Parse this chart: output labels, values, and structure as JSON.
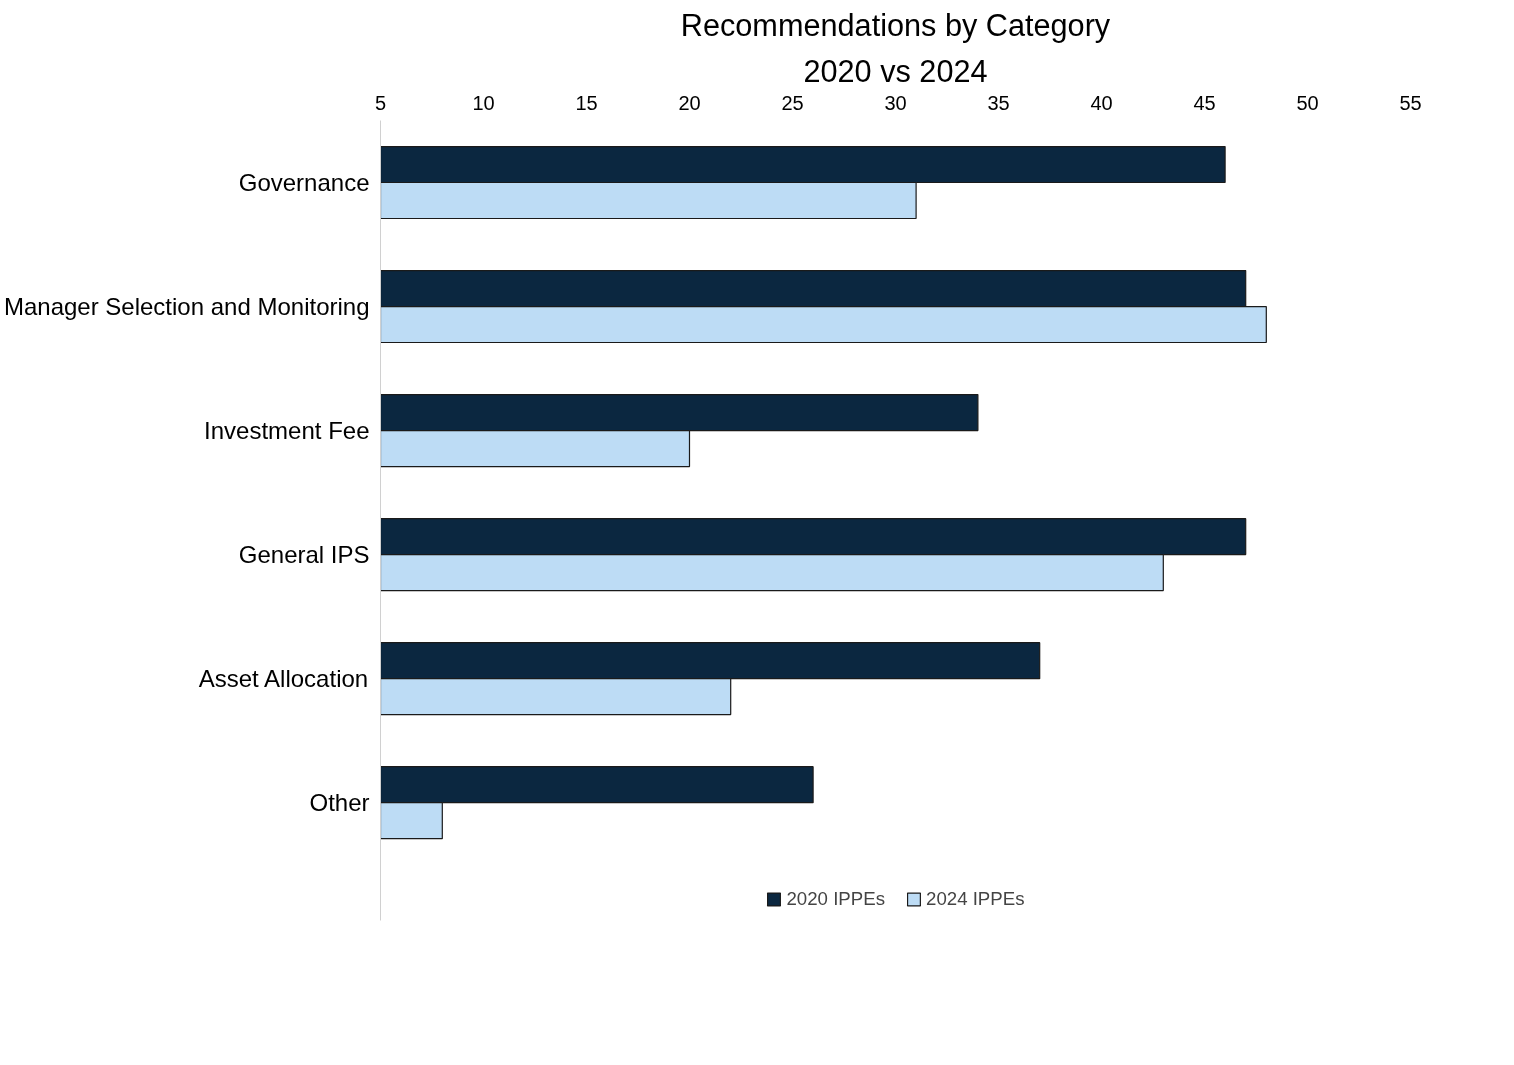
{
  "chart_data": {
    "type": "bar",
    "orientation": "horizontal",
    "title": "Recommendations by Category",
    "subtitle": "2020 vs 2024",
    "categories": [
      "Governance",
      "Manager Selection and Monitoring",
      "Investment Fee",
      "General IPS",
      "Asset Allocation",
      "Other"
    ],
    "series": [
      {
        "name": "2020 IPPEs",
        "color": "#0b2740",
        "values": [
          46,
          47,
          34,
          47,
          37,
          26
        ]
      },
      {
        "name": "2024 IPPEs",
        "color": "#bddcf5",
        "values": [
          31,
          48,
          20,
          43,
          22,
          8
        ]
      }
    ],
    "xlim": [
      5,
      55
    ],
    "xticks": [
      5,
      10,
      15,
      20,
      25,
      30,
      35,
      40,
      45,
      50,
      55
    ],
    "grid": false,
    "legend": "bottom"
  }
}
